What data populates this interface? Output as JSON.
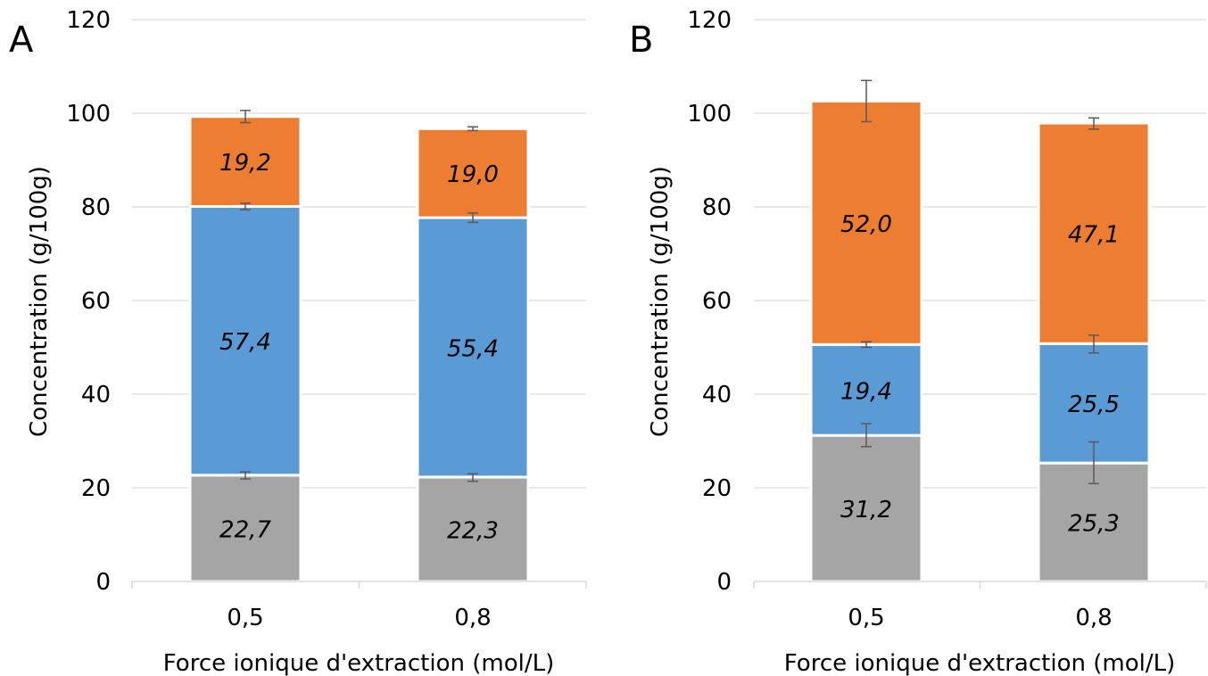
{
  "chart_data": [
    {
      "type": "bar",
      "stacked": true,
      "panel_label": "A",
      "categories": [
        "0,5",
        "0,8"
      ],
      "series": [
        {
          "color": "#a5a5a5",
          "values": [
            22.7,
            22.3
          ],
          "labels": [
            "22,7",
            "22,3"
          ],
          "error_top": [
            23.4,
            23.0
          ],
          "error_bottom": [
            21.9,
            21.4
          ]
        },
        {
          "color": "#5b9bd5",
          "values": [
            57.4,
            55.4
          ],
          "labels": [
            "57,4",
            "55,4"
          ],
          "error_top": [
            80.8,
            78.7
          ],
          "error_bottom": [
            79.4,
            76.7
          ]
        },
        {
          "color": "#ed7d31",
          "values": [
            19.2,
            19.0
          ],
          "labels": [
            "19,2",
            "19,0"
          ],
          "error_top": [
            100.6,
            97.1
          ],
          "error_bottom": [
            98.0,
            96.3
          ]
        }
      ],
      "xlabel": "Force ionique d'extraction (mol/L)",
      "ylabel": "Concentration (g/100g)",
      "ylim": [
        0,
        120
      ],
      "yticks": [
        "0",
        "20",
        "40",
        "60",
        "80",
        "100",
        "120"
      ],
      "grid": true
    },
    {
      "type": "bar",
      "stacked": true,
      "panel_label": "B",
      "categories": [
        "0,5",
        "0,8"
      ],
      "series": [
        {
          "color": "#a5a5a5",
          "values": [
            31.2,
            25.3
          ],
          "labels": [
            "31,2",
            "25,3"
          ],
          "error_top": [
            33.7,
            29.8
          ],
          "error_bottom": [
            28.8,
            20.9
          ]
        },
        {
          "color": "#5b9bd5",
          "values": [
            19.4,
            25.5
          ],
          "labels": [
            "19,4",
            "25,5"
          ],
          "error_top": [
            51.2,
            52.6
          ],
          "error_bottom": [
            50.0,
            48.8
          ]
        },
        {
          "color": "#ed7d31",
          "values": [
            52.0,
            47.1
          ],
          "labels": [
            "52,0",
            "47,1"
          ],
          "error_top": [
            107.0,
            99.0
          ],
          "error_bottom": [
            98.2,
            96.6
          ]
        }
      ],
      "xlabel": "Force ionique d'extraction (mol/L)",
      "ylabel": "Concentration (g/100g)",
      "ylim": [
        0,
        120
      ],
      "yticks": [
        "0",
        "20",
        "40",
        "60",
        "80",
        "100",
        "120"
      ],
      "grid": true
    }
  ]
}
